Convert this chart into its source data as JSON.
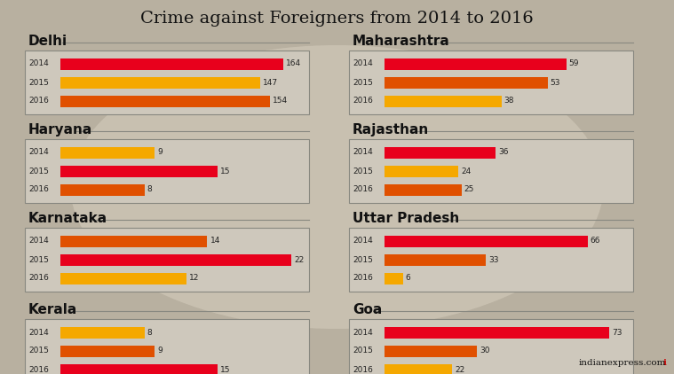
{
  "title": "Crime against Foreigners from 2014 to 2016",
  "bg_color": "#b8b0a0",
  "box_bg": "#cec8bc",
  "box_edge": "#888880",
  "title_color": "#111111",
  "watermark": "indianexpress.com",
  "regions": [
    {
      "name": "Delhi",
      "col": 0,
      "row": 0,
      "years": [
        "2014",
        "2015",
        "2016"
      ],
      "values": [
        164,
        147,
        154
      ],
      "colors": [
        "#e8001c",
        "#f5a800",
        "#e05000"
      ],
      "max_val": 170
    },
    {
      "name": "Haryana",
      "col": 0,
      "row": 1,
      "years": [
        "2014",
        "2015",
        "2016"
      ],
      "values": [
        9,
        15,
        8
      ],
      "colors": [
        "#f5a800",
        "#e8001c",
        "#e05000"
      ],
      "max_val": 22
    },
    {
      "name": "Karnataka",
      "col": 0,
      "row": 2,
      "years": [
        "2014",
        "2015",
        "2016"
      ],
      "values": [
        14,
        22,
        12
      ],
      "colors": [
        "#e05000",
        "#e8001c",
        "#f5a800"
      ],
      "max_val": 22
    },
    {
      "name": "Kerala",
      "col": 0,
      "row": 3,
      "years": [
        "2014",
        "2015",
        "2016"
      ],
      "values": [
        8,
        9,
        15
      ],
      "colors": [
        "#f5a800",
        "#e05000",
        "#e8001c"
      ],
      "max_val": 22
    },
    {
      "name": "Maharashtra",
      "col": 1,
      "row": 0,
      "years": [
        "2014",
        "2015",
        "2016"
      ],
      "values": [
        59,
        53,
        38
      ],
      "colors": [
        "#e8001c",
        "#e05000",
        "#f5a800"
      ],
      "max_val": 75
    },
    {
      "name": "Rajasthan",
      "col": 1,
      "row": 1,
      "years": [
        "2014",
        "2015",
        "2016"
      ],
      "values": [
        36,
        24,
        25
      ],
      "colors": [
        "#e8001c",
        "#f5a800",
        "#e05000"
      ],
      "max_val": 75
    },
    {
      "name": "Uttar Pradesh",
      "col": 1,
      "row": 2,
      "years": [
        "2014",
        "2015",
        "2016"
      ],
      "values": [
        66,
        33,
        6
      ],
      "colors": [
        "#e8001c",
        "#e05000",
        "#f5a800"
      ],
      "max_val": 75
    },
    {
      "name": "Goa",
      "col": 1,
      "row": 3,
      "years": [
        "2014",
        "2015",
        "2016"
      ],
      "values": [
        73,
        30,
        22
      ],
      "colors": [
        "#e8001c",
        "#e05000",
        "#f5a800"
      ],
      "max_val": 75
    }
  ],
  "fig_width": 7.59,
  "fig_height": 4.22,
  "dpi": 100
}
